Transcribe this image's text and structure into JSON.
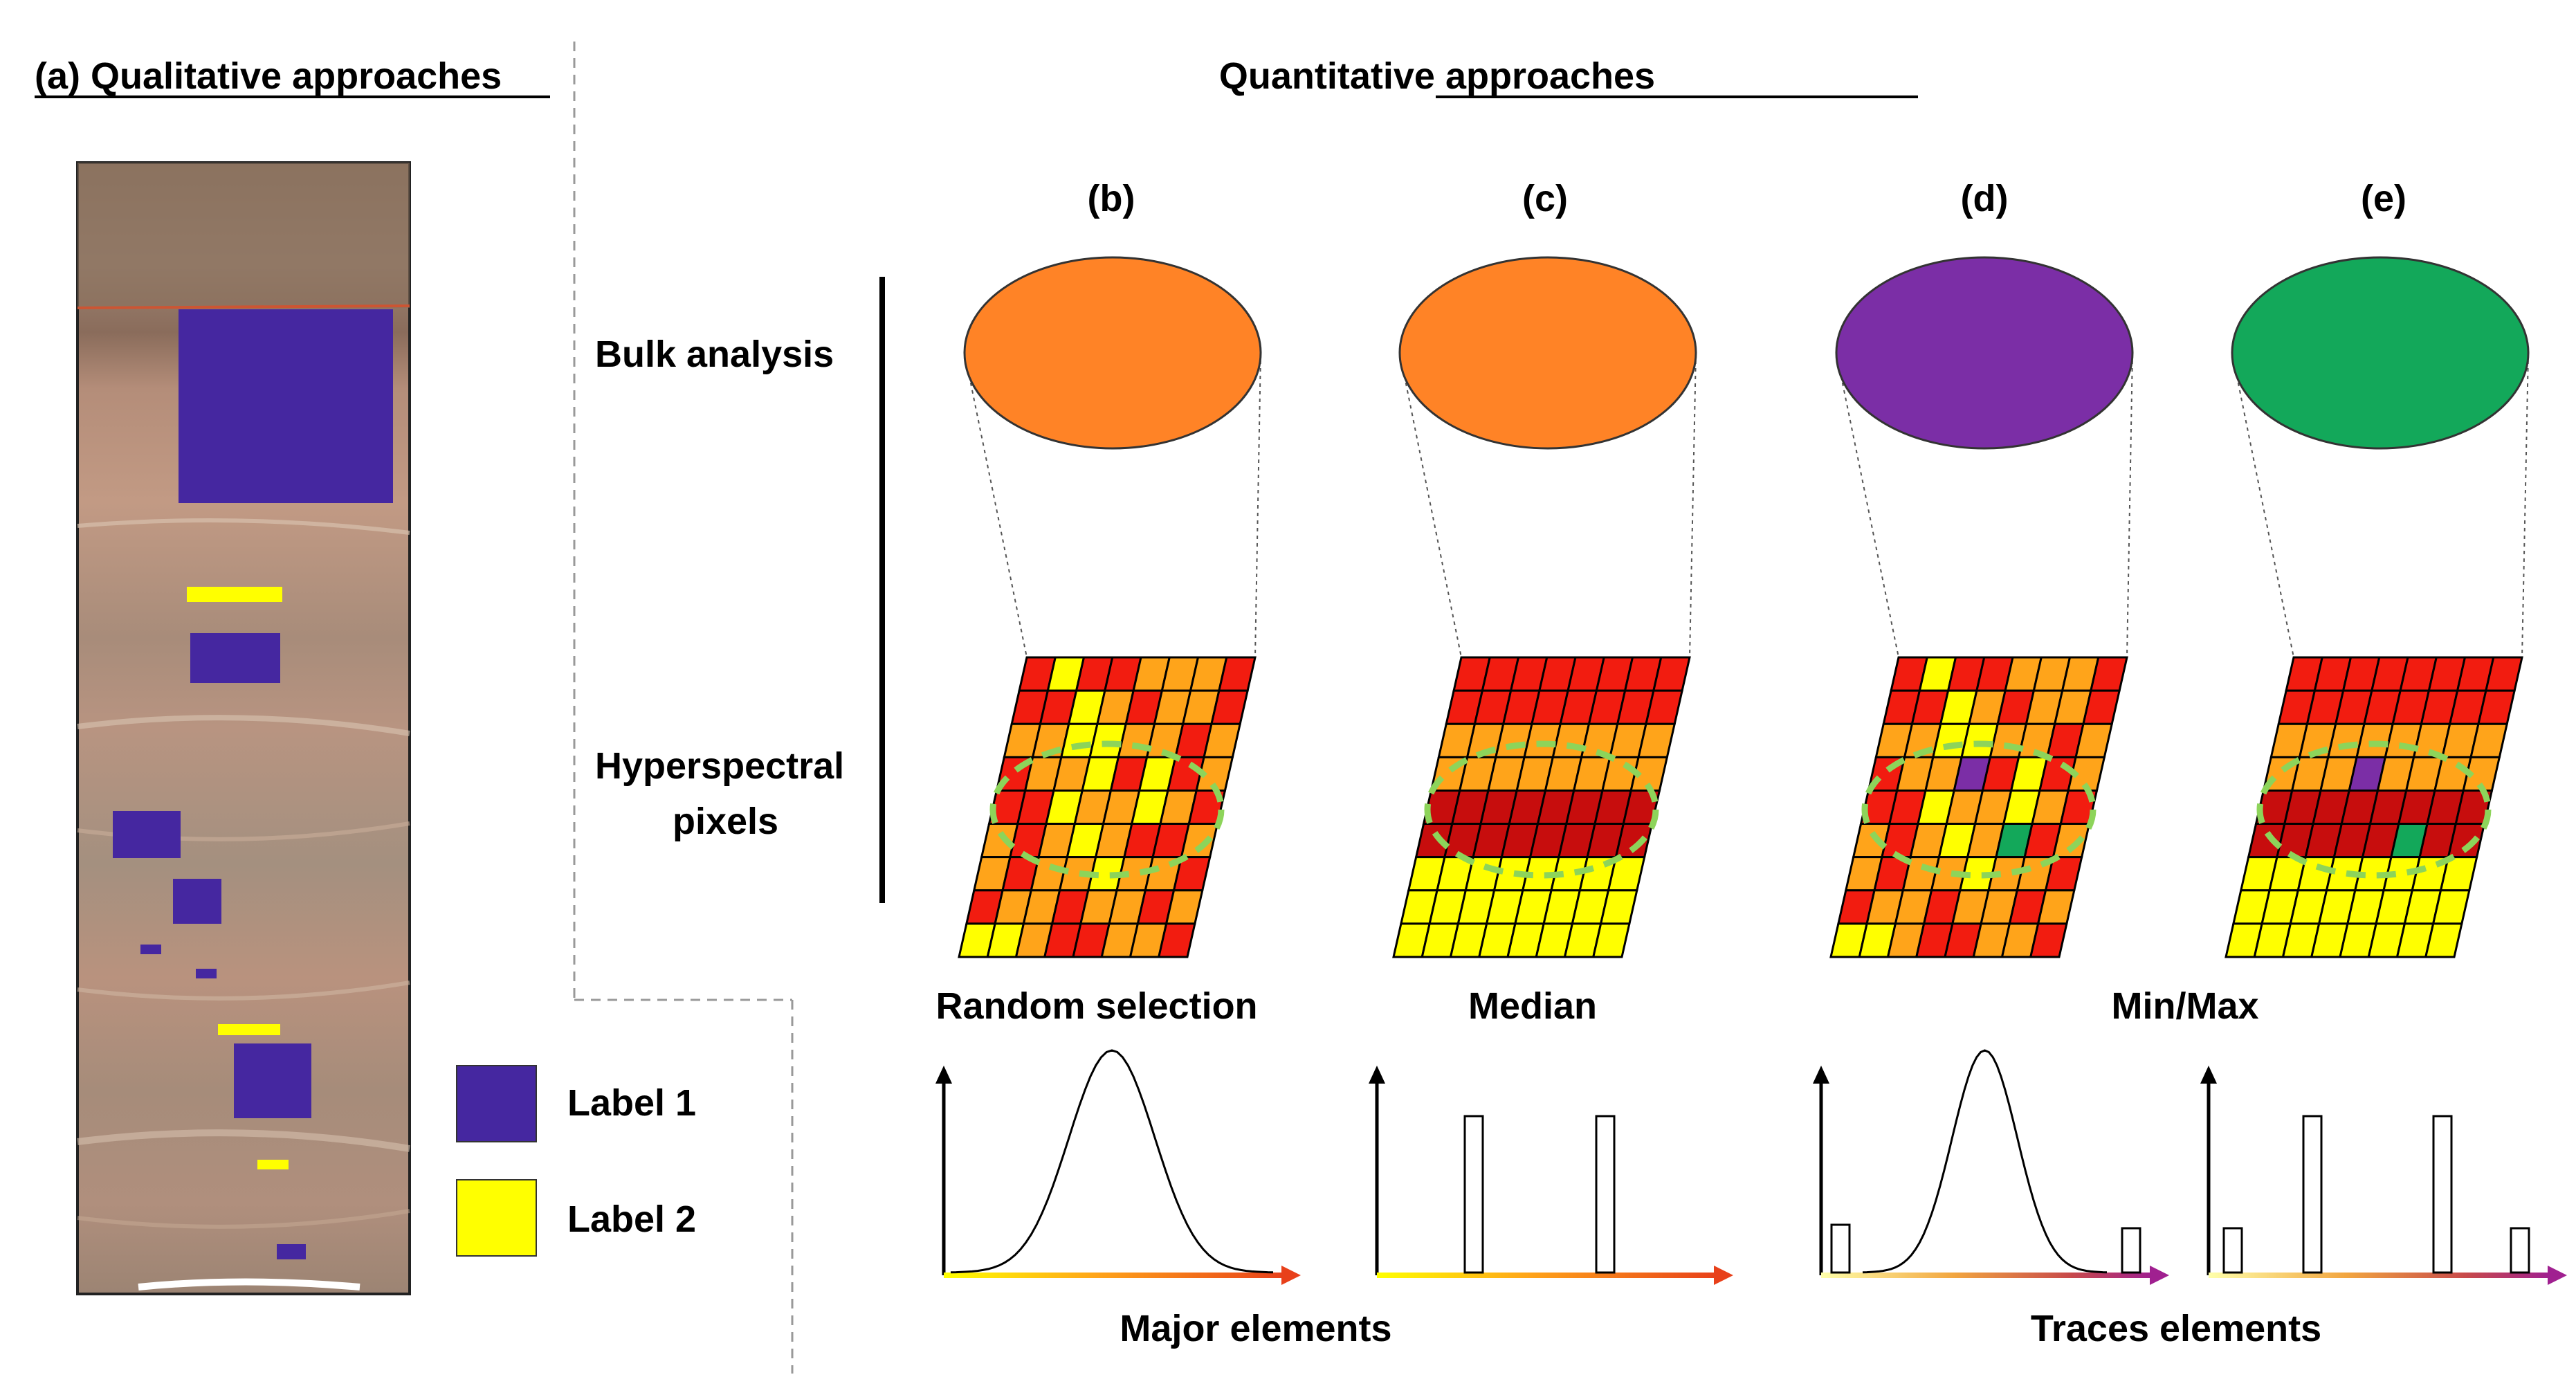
{
  "qualitative": {
    "title": "(a) Qualitative approaches",
    "legend": [
      {
        "label": "Label 1",
        "color": "#4527a0"
      },
      {
        "label": "Label 2",
        "color": "#ffff00"
      }
    ]
  },
  "quantitative": {
    "title": "Quantitative approaches",
    "panels": [
      "(b)",
      "(c)",
      "(d)",
      "(e)"
    ],
    "row_labels": {
      "bulk": "Bulk analysis",
      "pixels_line1": "Hyperspectral",
      "pixels_line2": "pixels"
    },
    "methods": [
      "Random selection",
      "Median",
      "Min/Max"
    ],
    "bottom_labels": [
      "Major elements",
      "Traces elements"
    ],
    "bulk_colors": [
      "#ff8326",
      "#ff8326",
      "#7b2ea6",
      "#13a85a"
    ]
  },
  "colors": {
    "red": "#f21c10",
    "orange": "#ffa41a",
    "yellow": "#ffff00",
    "darkred": "#c70d0d",
    "purple": "#7b2ea6",
    "green": "#13a85a",
    "ellipse": "#8dd45a"
  },
  "grids": {
    "b": [
      "RYRROOOR",
      "RRYOROOR",
      "OOYYOORO",
      "ROOYRYRO",
      "RRYOOYOR",
      "OROYORRO",
      "OROOYOOR",
      "ROOROORO",
      "YYORROOR"
    ],
    "c": [
      "RRRRRRRR",
      "RRRRRRRR",
      "OOOOOOOO",
      "OOOOOOOO",
      "DDDDDDDD",
      "DDDDDDDD",
      "YYYYYYYY",
      "YYYYYYYY",
      "YYYYYYYY"
    ],
    "d": [
      "RYRROOOR",
      "RRYOROOR",
      "OOYYOORO",
      "ROOPRYRO",
      "RRYOOYOR",
      "OROYOGRO",
      "OROOYOOR",
      "ROOROORO",
      "YYORROOR"
    ],
    "e": [
      "RRRRRRRR",
      "RRRRRRRR",
      "OOOOOOOO",
      "OOOPOOOO",
      "DDDDDDDD",
      "DDDDDGDD",
      "YYYYYYYY",
      "YYYYYYYY",
      "YYYYYYYY"
    ]
  },
  "histograms": [
    {
      "type": "curve",
      "arrow": "orange"
    },
    {
      "type": "bars2",
      "arrow": "orange"
    },
    {
      "type": "curve_bars",
      "arrow": "purple"
    },
    {
      "type": "bars4",
      "arrow": "purple"
    }
  ]
}
